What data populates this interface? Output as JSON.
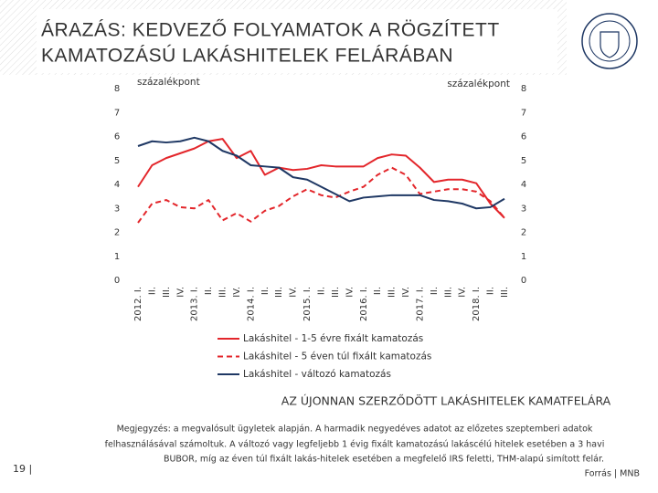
{
  "slide": {
    "title_lines": [
      "ÁRAZÁS: KEDVEZŐ FOLYAMATOK A RÖGZÍTETT",
      "KAMATOZÁSÚ LAKÁSHITELEK FELÁRÁBAN"
    ],
    "caption": "AZ ÚJONNAN SZERZŐDÖTT LAKÁSHITELEK KAMATFELÁRA",
    "note_lines": [
      "Megjegyzés: a megvalósult ügyletek alapján. A harmadik negyedéves adatot az előzetes szeptemberi adatok",
      "felhasználásával számoltuk. A változó vagy legfeljebb 1 évig fixált kamatozású lakáscélú hitelek esetében a 3 havi",
      "BUBOR, míg az éven túl fixált lakás-hitelek esetében a megfelelő IRS feletti, THM-alapú simított felár."
    ],
    "source": "Forrás | MNB",
    "page": "19 |"
  },
  "chart_data": {
    "type": "line",
    "y_label": "százalékpont",
    "y2_label": "százalékpont",
    "categories": [
      "2012. I.",
      "II.",
      "III.",
      "IV.",
      "2013. I.",
      "II.",
      "III.",
      "IV.",
      "2014. I.",
      "II.",
      "III.",
      "IV.",
      "2015. I.",
      "II.",
      "III.",
      "IV.",
      "2016. I.",
      "II.",
      "III.",
      "IV.",
      "2017. I.",
      "II.",
      "III.",
      "IV.",
      "2018. I.",
      "II.",
      "III."
    ],
    "series": [
      {
        "name": "Lakáshitel - 1-5 évre fixált kamatozás",
        "color": "#e3262b",
        "dash": "solid",
        "values": [
          3.9,
          4.8,
          5.1,
          5.3,
          5.5,
          5.8,
          5.9,
          5.1,
          5.4,
          4.4,
          4.7,
          4.6,
          4.65,
          4.8,
          4.75,
          4.75,
          4.75,
          5.1,
          5.25,
          5.2,
          4.7,
          4.1,
          4.2,
          4.2,
          4.05,
          3.2,
          2.6
        ]
      },
      {
        "name": "Lakáshitel - 5 éven túl fixált kamatozás",
        "color": "#e3262b",
        "dash": "dashed",
        "values": [
          2.4,
          3.2,
          3.35,
          3.05,
          3.0,
          3.35,
          2.5,
          2.8,
          2.45,
          2.9,
          3.1,
          3.5,
          3.8,
          3.55,
          3.45,
          3.7,
          3.9,
          4.4,
          4.7,
          4.4,
          3.6,
          3.7,
          3.8,
          3.8,
          3.7,
          3.3,
          2.6
        ]
      },
      {
        "name": "Lakáshitel - változó kamatozás",
        "color": "#1f3864",
        "dash": "solid",
        "values": [
          5.6,
          5.8,
          5.75,
          5.8,
          5.95,
          5.8,
          5.4,
          5.2,
          4.8,
          4.75,
          4.7,
          4.3,
          4.2,
          3.9,
          3.6,
          3.3,
          3.45,
          3.5,
          3.55,
          3.55,
          3.55,
          3.35,
          3.3,
          3.2,
          3.0,
          3.05,
          3.4
        ]
      }
    ],
    "ylim": [
      0,
      8
    ],
    "yticks": [
      0,
      1,
      2,
      3,
      4,
      5,
      6,
      7,
      8
    ],
    "y2lim": [
      0,
      8
    ],
    "y2ticks": [
      0,
      1,
      2,
      3,
      4,
      5,
      6,
      7,
      8
    ],
    "grid": false,
    "legend": "bottom"
  }
}
